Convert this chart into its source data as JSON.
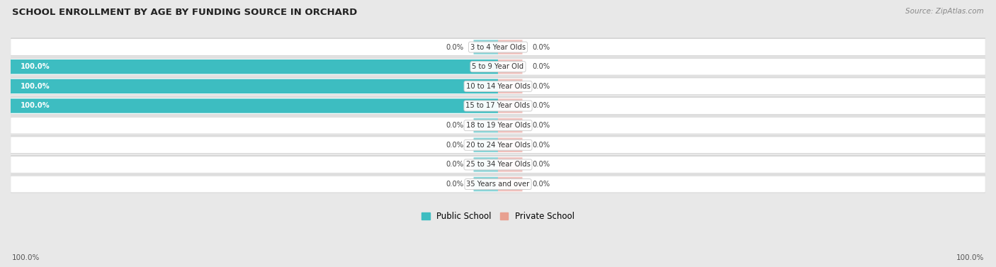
{
  "title": "SCHOOL ENROLLMENT BY AGE BY FUNDING SOURCE IN ORCHARD",
  "source": "Source: ZipAtlas.com",
  "categories": [
    "3 to 4 Year Olds",
    "5 to 9 Year Old",
    "10 to 14 Year Olds",
    "15 to 17 Year Olds",
    "18 to 19 Year Olds",
    "20 to 24 Year Olds",
    "25 to 34 Year Olds",
    "35 Years and over"
  ],
  "public_values": [
    0.0,
    100.0,
    100.0,
    100.0,
    0.0,
    0.0,
    0.0,
    0.0
  ],
  "private_values": [
    0.0,
    0.0,
    0.0,
    0.0,
    0.0,
    0.0,
    0.0,
    0.0
  ],
  "public_color": "#3DBDC1",
  "private_color": "#E8A090",
  "public_zero_color": "#89D4D7",
  "private_zero_color": "#F0C0BC",
  "row_bg_color": "#f5f5f5",
  "row_bg_alt": "#ebebeb",
  "fig_bg_color": "#e8e8e8",
  "label_text_color": "#444444",
  "white_label_color": "#ffffff",
  "axis_left_label": "100.0%",
  "axis_right_label": "100.0%",
  "max_val": 100
}
